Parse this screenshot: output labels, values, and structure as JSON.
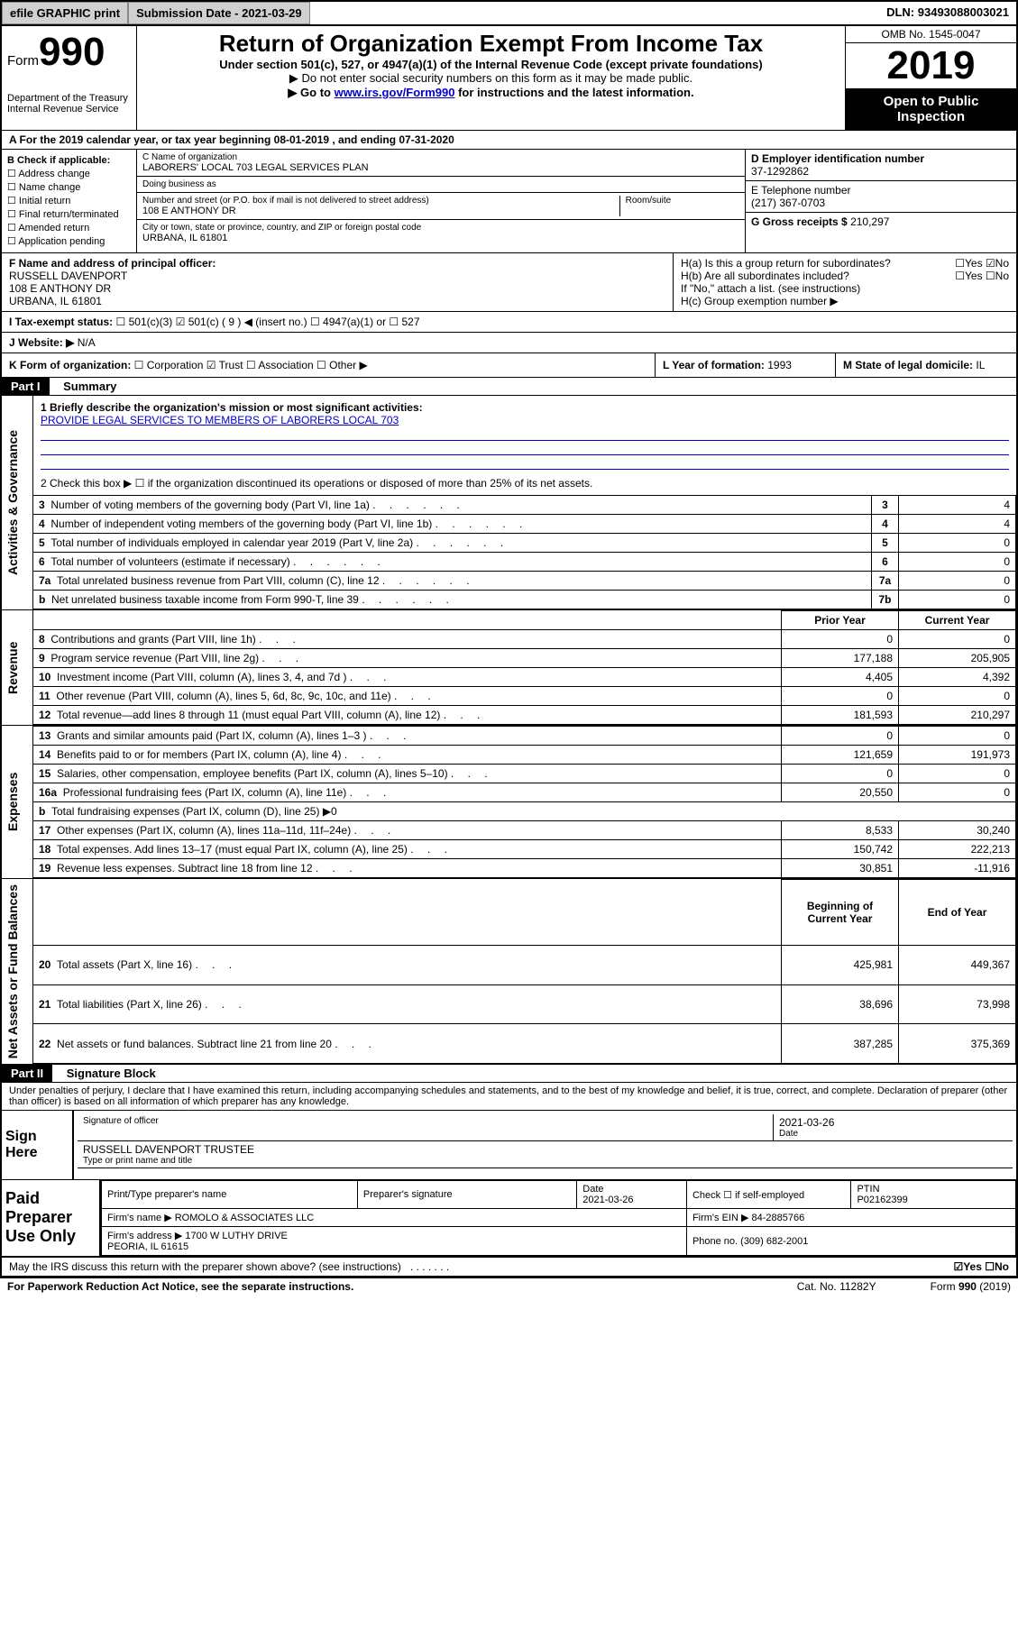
{
  "colors": {
    "black": "#000000",
    "white": "#ffffff",
    "link": "#0000cc",
    "btn_bg": "#d0d0d0"
  },
  "topbar": {
    "efile": "efile GRAPHIC print",
    "submission_label": "Submission Date - ",
    "submission_date": "2021-03-29",
    "dln_label": "DLN: ",
    "dln": "93493088003021"
  },
  "header": {
    "form_word": "Form",
    "form_num": "990",
    "dept": "Department of the Treasury\nInternal Revenue Service",
    "title": "Return of Organization Exempt From Income Tax",
    "sub1": "Under section 501(c), 527, or 4947(a)(1) of the Internal Revenue Code (except private foundations)",
    "sub2a": "▶ Do not enter social security numbers on this form as it may be made public.",
    "sub2b_pre": "▶ Go to ",
    "sub2b_link": "www.irs.gov/Form990",
    "sub2b_post": " for instructions and the latest information.",
    "omb": "OMB No. 1545-0047",
    "year": "2019",
    "open": "Open to Public Inspection"
  },
  "rowA": "A   For the 2019 calendar year, or tax year beginning 08-01-2019   , and ending 07-31-2020",
  "B": {
    "header": "B Check if applicable:",
    "items": [
      "Address change",
      "Name change",
      "Initial return",
      "Final return/terminated",
      "Amended return",
      "Application pending"
    ]
  },
  "C": {
    "name_label": "C Name of organization",
    "name": "LABORERS' LOCAL 703 LEGAL SERVICES PLAN",
    "dba_label": "Doing business as",
    "dba": "",
    "addr_label": "Number and street (or P.O. box if mail is not delivered to street address)",
    "room_label": "Room/suite",
    "addr": "108 E ANTHONY DR",
    "city_label": "City or town, state or province, country, and ZIP or foreign postal code",
    "city": "URBANA, IL  61801"
  },
  "DE": {
    "ein_label": "D Employer identification number",
    "ein": "37-1292862",
    "tel_label": "E Telephone number",
    "tel": "(217) 367-0703",
    "gross_label": "G Gross receipts $ ",
    "gross": "210,297"
  },
  "F": {
    "label": "F  Name and address of principal officer:",
    "name": "RUSSELL DAVENPORT",
    "addr1": "108 E ANTHONY DR",
    "addr2": "URBANA, IL  61801"
  },
  "H": {
    "a": "H(a)  Is this a group return for subordinates?",
    "a_ans": "☐Yes  ☑No",
    "b": "H(b)  Are all subordinates included?",
    "b_ans": "☐Yes  ☐No",
    "b_note": "If \"No,\" attach a list. (see instructions)",
    "c": "H(c)  Group exemption number ▶"
  },
  "I": {
    "label": "I   Tax-exempt status:",
    "opts": "☐ 501(c)(3)   ☑ 501(c) ( 9 ) ◀ (insert no.)   ☐ 4947(a)(1) or   ☐ 527"
  },
  "J": {
    "label": "J   Website: ▶ ",
    "val": "N/A"
  },
  "K": {
    "label": "K Form of organization:",
    "opts": "☐ Corporation  ☑ Trust  ☐ Association  ☐ Other ▶"
  },
  "L": {
    "label": "L Year of formation: ",
    "val": "1993"
  },
  "M": {
    "label": "M State of legal domicile: ",
    "val": "IL"
  },
  "parts": {
    "p1": "Part I",
    "p1_title": "Summary",
    "p2": "Part II",
    "p2_title": "Signature Block"
  },
  "summary": {
    "q1_label": "1  Briefly describe the organization's mission or most significant activities:",
    "q1_val": "PROVIDE LEGAL SERVICES TO MEMBERS OF LABORERS LOCAL 703",
    "q2": "2   Check this box ▶ ☐  if the organization discontinued its operations or disposed of more than 25% of its net assets."
  },
  "governance": [
    {
      "n": "3",
      "t": "Number of voting members of the governing body (Part VI, line 1a)",
      "c": "3",
      "v": "4"
    },
    {
      "n": "4",
      "t": "Number of independent voting members of the governing body (Part VI, line 1b)",
      "c": "4",
      "v": "4"
    },
    {
      "n": "5",
      "t": "Total number of individuals employed in calendar year 2019 (Part V, line 2a)",
      "c": "5",
      "v": "0"
    },
    {
      "n": "6",
      "t": "Total number of volunteers (estimate if necessary)",
      "c": "6",
      "v": "0"
    },
    {
      "n": "7a",
      "t": "Total unrelated business revenue from Part VIII, column (C), line 12",
      "c": "7a",
      "v": "0"
    },
    {
      "n": "b",
      "t": "Net unrelated business taxable income from Form 990-T, line 39",
      "c": "7b",
      "v": "0"
    }
  ],
  "col_headers": {
    "prior": "Prior Year",
    "current": "Current Year",
    "beg": "Beginning of Current Year",
    "end": "End of Year"
  },
  "revenue": [
    {
      "n": "8",
      "t": "Contributions and grants (Part VIII, line 1h)",
      "p": "0",
      "c": "0"
    },
    {
      "n": "9",
      "t": "Program service revenue (Part VIII, line 2g)",
      "p": "177,188",
      "c": "205,905"
    },
    {
      "n": "10",
      "t": "Investment income (Part VIII, column (A), lines 3, 4, and 7d )",
      "p": "4,405",
      "c": "4,392"
    },
    {
      "n": "11",
      "t": "Other revenue (Part VIII, column (A), lines 5, 6d, 8c, 9c, 10c, and 11e)",
      "p": "0",
      "c": "0"
    },
    {
      "n": "12",
      "t": "Total revenue—add lines 8 through 11 (must equal Part VIII, column (A), line 12)",
      "p": "181,593",
      "c": "210,297"
    }
  ],
  "expenses": [
    {
      "n": "13",
      "t": "Grants and similar amounts paid (Part IX, column (A), lines 1–3 )",
      "p": "0",
      "c": "0"
    },
    {
      "n": "14",
      "t": "Benefits paid to or for members (Part IX, column (A), line 4)",
      "p": "121,659",
      "c": "191,973"
    },
    {
      "n": "15",
      "t": "Salaries, other compensation, employee benefits (Part IX, column (A), lines 5–10)",
      "p": "0",
      "c": "0"
    },
    {
      "n": "16a",
      "t": "Professional fundraising fees (Part IX, column (A), line 11e)",
      "p": "20,550",
      "c": "0"
    },
    {
      "n": "b",
      "t": "Total fundraising expenses (Part IX, column (D), line 25) ▶0",
      "p": "",
      "c": ""
    },
    {
      "n": "17",
      "t": "Other expenses (Part IX, column (A), lines 11a–11d, 11f–24e)",
      "p": "8,533",
      "c": "30,240"
    },
    {
      "n": "18",
      "t": "Total expenses. Add lines 13–17 (must equal Part IX, column (A), line 25)",
      "p": "150,742",
      "c": "222,213"
    },
    {
      "n": "19",
      "t": "Revenue less expenses. Subtract line 18 from line 12",
      "p": "30,851",
      "c": "-11,916"
    }
  ],
  "netassets": [
    {
      "n": "20",
      "t": "Total assets (Part X, line 16)",
      "p": "425,981",
      "c": "449,367"
    },
    {
      "n": "21",
      "t": "Total liabilities (Part X, line 26)",
      "p": "38,696",
      "c": "73,998"
    },
    {
      "n": "22",
      "t": "Net assets or fund balances. Subtract line 21 from line 20",
      "p": "387,285",
      "c": "375,369"
    }
  ],
  "side_labels": {
    "gov": "Activities & Governance",
    "rev": "Revenue",
    "exp": "Expenses",
    "net": "Net Assets or Fund Balances"
  },
  "sig_perjury": "Under penalties of perjury, I declare that I have examined this return, including accompanying schedules and statements, and to the best of my knowledge and belief, it is true, correct, and complete. Declaration of preparer (other than officer) is based on all information of which preparer has any knowledge.",
  "sign": {
    "here": "Sign Here",
    "sig_of_officer": "Signature of officer",
    "date": "2021-03-26",
    "date_lbl": "Date",
    "name": "RUSSELL DAVENPORT  TRUSTEE",
    "name_lbl": "Type or print name and title"
  },
  "preparer": {
    "title": "Paid Preparer Use Only",
    "h1": "Print/Type preparer's name",
    "h2": "Preparer's signature",
    "h3": "Date",
    "date": "2021-03-26",
    "h4": "Check ☐ if self-employed",
    "h5": "PTIN",
    "ptin": "P02162399",
    "firm_name_lbl": "Firm's name    ▶ ",
    "firm_name": "ROMOLO & ASSOCIATES LLC",
    "firm_ein_lbl": "Firm's EIN ▶ ",
    "firm_ein": "84-2885766",
    "firm_addr_lbl": "Firm's address ▶ ",
    "firm_addr1": "1700 W LUTHY DRIVE",
    "firm_addr2": "PEORIA, IL  61615",
    "phone_lbl": "Phone no. ",
    "phone": "(309) 682-2001"
  },
  "discuss": {
    "q": "May the IRS discuss this return with the preparer shown above? (see instructions)",
    "ans": "☑Yes   ☐No"
  },
  "footer": {
    "left": "For Paperwork Reduction Act Notice, see the separate instructions.",
    "mid": "Cat. No. 11282Y",
    "right": "Form 990 (2019)"
  }
}
